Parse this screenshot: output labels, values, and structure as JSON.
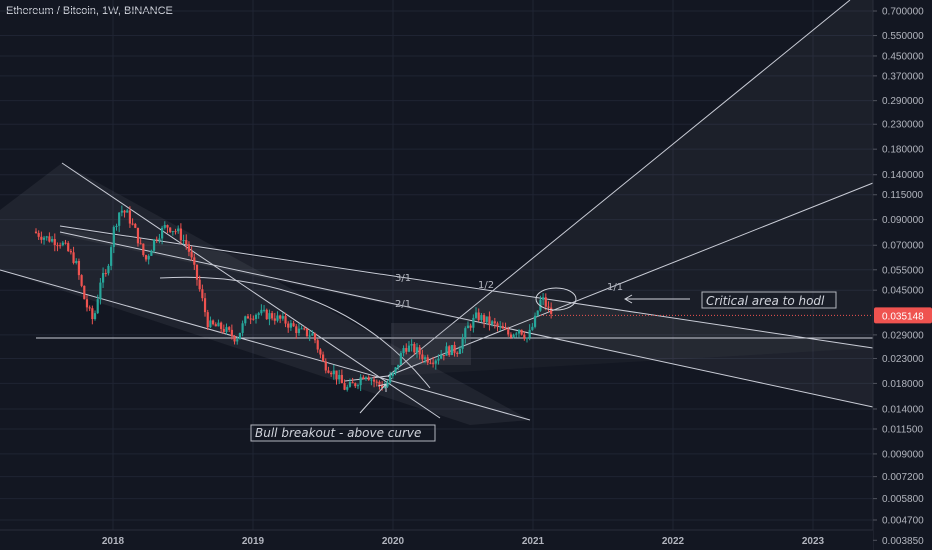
{
  "chart_data": {
    "type": "candlestick",
    "title": "Ethereum / Bitcoin, 1W, BINANCE",
    "y_scale": "log",
    "ylim": [
      0.0035,
      0.78
    ],
    "y_ticks": [
      "0.700000",
      "0.550000",
      "0.450000",
      "0.370000",
      "0.290000",
      "0.230000",
      "0.180000",
      "0.140000",
      "0.115000",
      "0.090000",
      "0.070000",
      "0.055000",
      "0.045000",
      "0.029000",
      "0.023000",
      "0.018000",
      "0.014000",
      "0.011500",
      "0.009000",
      "0.007200",
      "0.005800",
      "0.004700",
      "0.003850"
    ],
    "y_tick_values": [
      0.7,
      0.55,
      0.45,
      0.37,
      0.29,
      0.23,
      0.18,
      0.14,
      0.115,
      0.09,
      0.07,
      0.055,
      0.045,
      0.029,
      0.023,
      0.018,
      0.014,
      0.0115,
      0.009,
      0.0072,
      0.0058,
      0.0047,
      0.00385
    ],
    "x_ticks": [
      "2018",
      "2019",
      "2020",
      "2021",
      "2022",
      "2023"
    ],
    "last_price": "0.035148",
    "last_price_value": 0.035148,
    "series_up_color": "#26a69a",
    "series_down_color": "#ef5350",
    "grid": true,
    "candles_anchor": [
      {
        "t": 2017.45,
        "v": 0.08
      },
      {
        "t": 2017.55,
        "v": 0.075
      },
      {
        "t": 2017.65,
        "v": 0.072
      },
      {
        "t": 2017.75,
        "v": 0.06
      },
      {
        "t": 2017.82,
        "v": 0.04
      },
      {
        "t": 2017.88,
        "v": 0.033
      },
      {
        "t": 2017.93,
        "v": 0.05
      },
      {
        "t": 2017.97,
        "v": 0.052
      },
      {
        "t": 2018.02,
        "v": 0.08
      },
      {
        "t": 2018.07,
        "v": 0.1
      },
      {
        "t": 2018.12,
        "v": 0.095
      },
      {
        "t": 2018.18,
        "v": 0.08
      },
      {
        "t": 2018.25,
        "v": 0.06
      },
      {
        "t": 2018.32,
        "v": 0.075
      },
      {
        "t": 2018.4,
        "v": 0.085
      },
      {
        "t": 2018.48,
        "v": 0.08
      },
      {
        "t": 2018.55,
        "v": 0.07
      },
      {
        "t": 2018.62,
        "v": 0.05
      },
      {
        "t": 2018.7,
        "v": 0.032
      },
      {
        "t": 2018.8,
        "v": 0.031
      },
      {
        "t": 2018.9,
        "v": 0.028
      },
      {
        "t": 2018.98,
        "v": 0.035
      },
      {
        "t": 2019.05,
        "v": 0.036
      },
      {
        "t": 2019.15,
        "v": 0.035
      },
      {
        "t": 2019.25,
        "v": 0.033
      },
      {
        "t": 2019.35,
        "v": 0.03
      },
      {
        "t": 2019.45,
        "v": 0.029
      },
      {
        "t": 2019.52,
        "v": 0.022
      },
      {
        "t": 2019.6,
        "v": 0.02
      },
      {
        "t": 2019.68,
        "v": 0.017
      },
      {
        "t": 2019.75,
        "v": 0.018
      },
      {
        "t": 2019.82,
        "v": 0.02
      },
      {
        "t": 2019.9,
        "v": 0.018
      },
      {
        "t": 2019.96,
        "v": 0.0175
      },
      {
        "t": 2020.03,
        "v": 0.02
      },
      {
        "t": 2020.1,
        "v": 0.026
      },
      {
        "t": 2020.18,
        "v": 0.025
      },
      {
        "t": 2020.25,
        "v": 0.023
      },
      {
        "t": 2020.32,
        "v": 0.023
      },
      {
        "t": 2020.4,
        "v": 0.025
      },
      {
        "t": 2020.48,
        "v": 0.025
      },
      {
        "t": 2020.55,
        "v": 0.031
      },
      {
        "t": 2020.62,
        "v": 0.035
      },
      {
        "t": 2020.7,
        "v": 0.033
      },
      {
        "t": 2020.78,
        "v": 0.031
      },
      {
        "t": 2020.85,
        "v": 0.029
      },
      {
        "t": 2020.92,
        "v": 0.031
      },
      {
        "t": 2020.98,
        "v": 0.028
      },
      {
        "t": 2021.03,
        "v": 0.033
      },
      {
        "t": 2021.08,
        "v": 0.042
      },
      {
        "t": 2021.14,
        "v": 0.036
      }
    ],
    "annotations": {
      "bull_breakout": "Bull breakout - above curve",
      "critical_area": "Critical area to hodl",
      "ratio_3_1": "3/1",
      "ratio_2_1": "2/1",
      "ratio_1_2": "1/2",
      "ratio_1_1": "1/1"
    }
  }
}
